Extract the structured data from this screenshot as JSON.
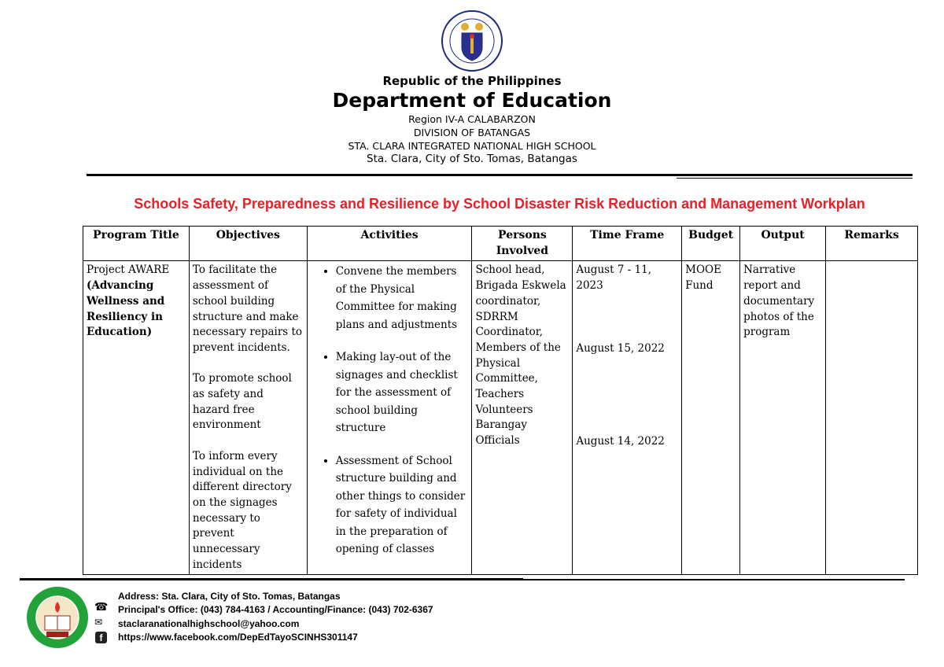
{
  "header": {
    "seal_text": "KAGAWARAN NG EDUKASYON · REPUBLIKA NG PILIPINAS",
    "line1": "Republic of the Philippines",
    "line2": "Department of Education",
    "line3": "Region IV-A CALABARZON",
    "line4": "DIVISION OF BATANGAS",
    "line5": "STA. CLARA INTEGRATED NATIONAL HIGH SCHOOL",
    "line6": "Sta. Clara, City of Sto. Tomas, Batangas"
  },
  "document_title": "Schools Safety, Preparedness and Resilience by School Disaster Risk Reduction and Management Workplan",
  "title_color": "#e8202a",
  "table": {
    "columns": [
      "Program Title",
      "Objectives",
      "Activities",
      "Persons Involved",
      "Time Frame",
      "Budget",
      "Output",
      "Remarks"
    ],
    "row": {
      "program_title_plain": "Project AWARE",
      "program_title_bold": "(Advancing Wellness and Resiliency in Education)",
      "objectives": [
        "To facilitate the assessment of school building structure and make necessary repairs to prevent incidents.",
        "To promote school as safety and hazard free environment",
        "To inform every individual on the different directory on the signages necessary to prevent unnecessary incidents"
      ],
      "activities": [
        "Convene the members of the Physical Committee for making plans and adjustments",
        "Making lay-out of the signages and checklist for the assessment of school building structure",
        "Assessment of School structure building and other things to consider for safety of individual in the preparation of opening of classes"
      ],
      "persons": "School head, Brigada Eskwela coordinator, SDRRM Coordinator, Members of the Physical Committee, Teachers Volunteers Barangay Officials",
      "time_frames": [
        "August 7 - 11, 2023",
        "August 15, 2022",
        "August 14, 2022"
      ],
      "budget": "MOOE Fund",
      "output": "Narrative report and documentary photos of the program",
      "remarks": ""
    }
  },
  "footer": {
    "logo_text": "STA. CLARA INTEGRATED NATIONAL HIGH SCHOOL",
    "logo_founded": "Founded",
    "logo_year": "1972",
    "address": "Address: Sta. Clara, City of Sto. Tomas, Batangas",
    "phone": "Principal's Office: (043) 784-4163 / Accounting/Finance: (043) 702-6367",
    "email": "staclaranationalhighschool@yahoo.com",
    "facebook": "https://www.facebook.com/DepEdTayoSCINHS301147",
    "icons": [
      "phone-icon",
      "mail-icon",
      "facebook-icon"
    ]
  }
}
